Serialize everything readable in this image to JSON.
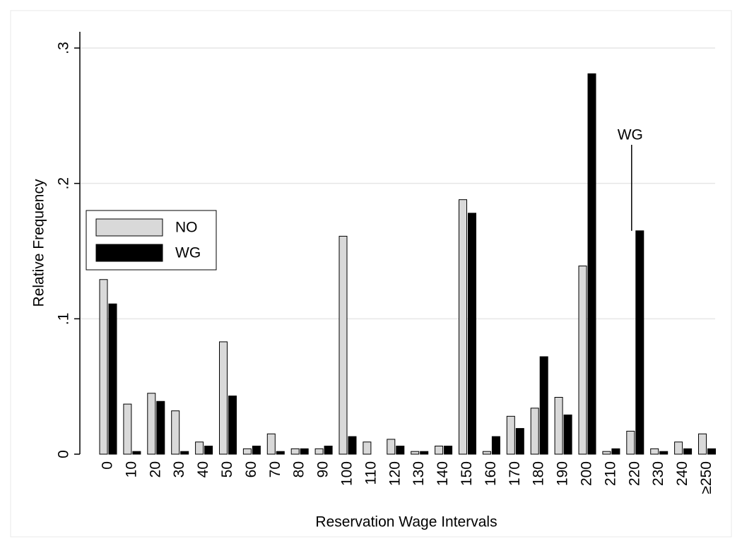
{
  "chart_data": {
    "type": "bar",
    "x_label": "Reservation Wage Intervals",
    "y_label": "Relative Frequency",
    "categories": [
      "0",
      "10",
      "20",
      "30",
      "40",
      "50",
      "60",
      "70",
      "80",
      "90",
      "100",
      "110",
      "120",
      "130",
      "140",
      "150",
      "160",
      "170",
      "180",
      "190",
      "200",
      "210",
      "220",
      "230",
      "240",
      "≥250"
    ],
    "series": [
      {
        "name": "NO",
        "color": "#d9d9d9",
        "values": [
          0.129,
          0.037,
          0.045,
          0.032,
          0.009,
          0.083,
          0.004,
          0.015,
          0.004,
          0.004,
          0.161,
          0.009,
          0.011,
          0.002,
          0.006,
          0.188,
          0.002,
          0.028,
          0.034,
          0.042,
          0.139,
          0.002,
          0.017,
          0.004,
          0.009,
          0.015
        ]
      },
      {
        "name": "WG",
        "color": "#000000",
        "values": [
          0.111,
          0.002,
          0.039,
          0.002,
          0.006,
          0.043,
          0.006,
          0.002,
          0.004,
          0.006,
          0.013,
          0,
          0.006,
          0.002,
          0.006,
          0.178,
          0.013,
          0.019,
          0.072,
          0.029,
          0.281,
          0.004,
          0.165,
          0.002,
          0.004,
          0.004
        ]
      }
    ],
    "ylim": [
      0,
      0.3
    ],
    "yticks": [
      0,
      {
        "value": 0.1,
        "label": ".1"
      },
      {
        "value": 0.2,
        "label": ".2"
      },
      {
        "value": 0.3,
        "label": ".3"
      }
    ],
    "grid": true,
    "legend": "left",
    "annotation": "WG"
  }
}
